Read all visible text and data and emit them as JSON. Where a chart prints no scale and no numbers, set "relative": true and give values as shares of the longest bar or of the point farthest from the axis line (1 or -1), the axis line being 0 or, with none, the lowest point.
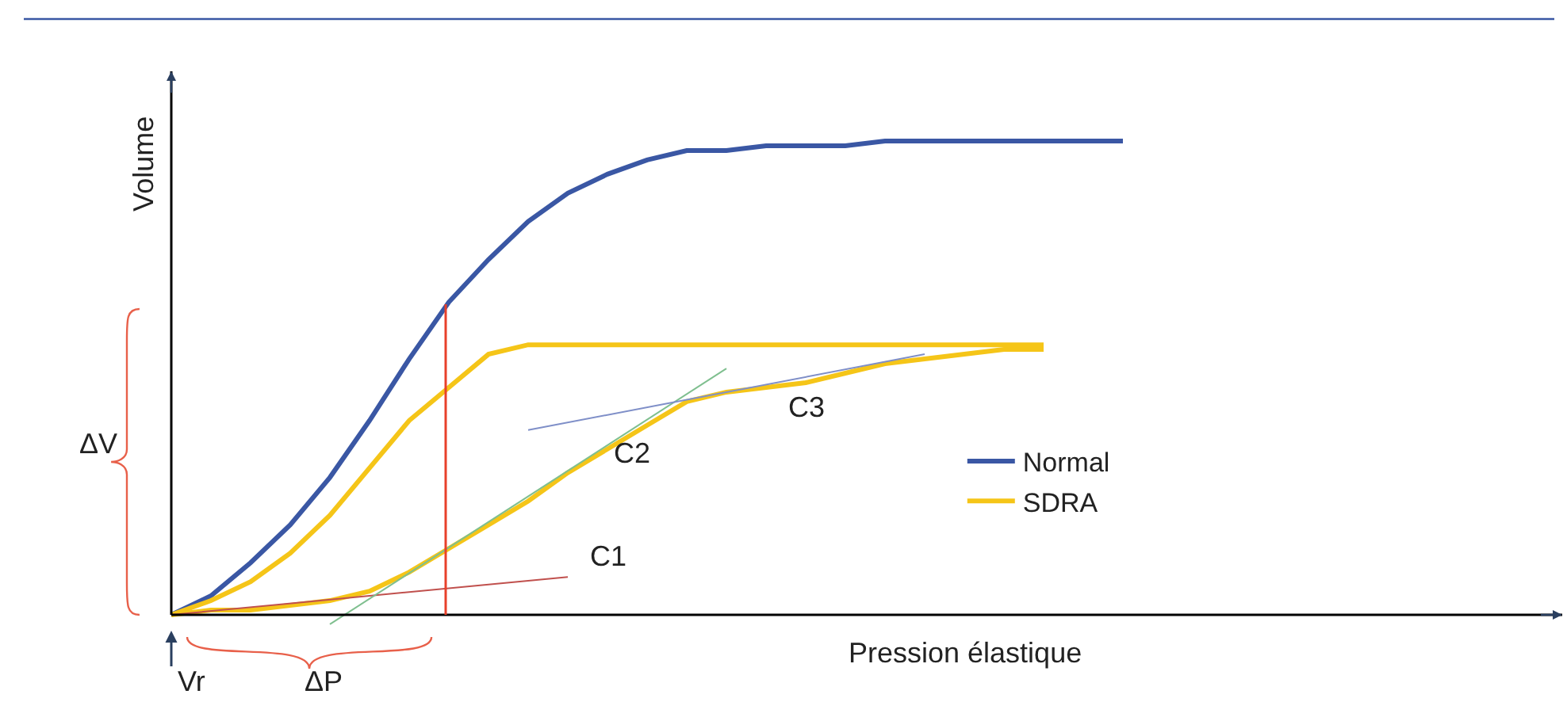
{
  "chart_data": {
    "type": "line",
    "relative": true,
    "xlabel": "Pression élastique",
    "ylabel": "Volume",
    "categories": [
      null,
      null,
      null,
      null,
      null,
      null,
      null,
      null,
      null,
      null,
      null,
      null,
      null,
      null,
      null,
      null,
      null,
      null,
      null,
      null,
      null,
      null,
      null,
      null,
      null
    ],
    "series": [
      {
        "name": "Normal",
        "color": "#3a57a4",
        "values": [
          0,
          0.04,
          0.11,
          0.19,
          0.29,
          0.41,
          0.54,
          0.66,
          0.75,
          0.83,
          0.89,
          0.93,
          0.96,
          0.98,
          0.98,
          0.99,
          0.99,
          0.99,
          1,
          1,
          1,
          1,
          1,
          1,
          1
        ]
      },
      {
        "name": "SDRA",
        "color": "#f5c518",
        "values": [
          0,
          0.03,
          0.07,
          0.13,
          0.21,
          0.31,
          0.41,
          0.48,
          0.55,
          0.57,
          0.57,
          0.57,
          0.57,
          0.57,
          0.57,
          0.57,
          0.57,
          0.57,
          0.57,
          0.57,
          0.57,
          0.57,
          0.57,
          null,
          null
        ]
      },
      {
        "color": "#f5c518",
        "values": [
          0,
          0.01,
          0.01,
          0.02,
          0.03,
          0.05,
          0.09,
          0.14,
          0.19,
          0.24,
          0.3,
          0.35,
          0.4,
          0.45,
          0.47,
          0.48,
          0.49,
          0.51,
          0.53,
          0.54,
          0.55,
          0.56,
          0.56,
          null,
          null
        ]
      },
      {
        "color": "#c0504d",
        "values": [
          0,
          null,
          null,
          null,
          null,
          null,
          null,
          null,
          null,
          null,
          0.08,
          null,
          null,
          null,
          null,
          null,
          null,
          null,
          null,
          null,
          null,
          null,
          null,
          null,
          null
        ]
      },
      {
        "color": "#7fbf8f",
        "values": [
          null,
          null,
          null,
          null,
          -0.02,
          null,
          null,
          null,
          null,
          null,
          null,
          null,
          null,
          null,
          0.52,
          null,
          null,
          null,
          null,
          null,
          null,
          null,
          null,
          null,
          null
        ]
      },
      {
        "color": "#7f8fc8",
        "values": [
          null,
          null,
          null,
          null,
          null,
          null,
          null,
          null,
          null,
          0.39,
          null,
          null,
          null,
          null,
          null,
          null,
          null,
          null,
          null,
          0.55,
          null,
          null,
          null,
          null,
          null
        ]
      }
    ],
    "annotations": [
      "C1",
      "C2",
      "C3",
      "ΔV",
      "ΔP",
      "Vr"
    ],
    "legend": "bottom right"
  }
}
